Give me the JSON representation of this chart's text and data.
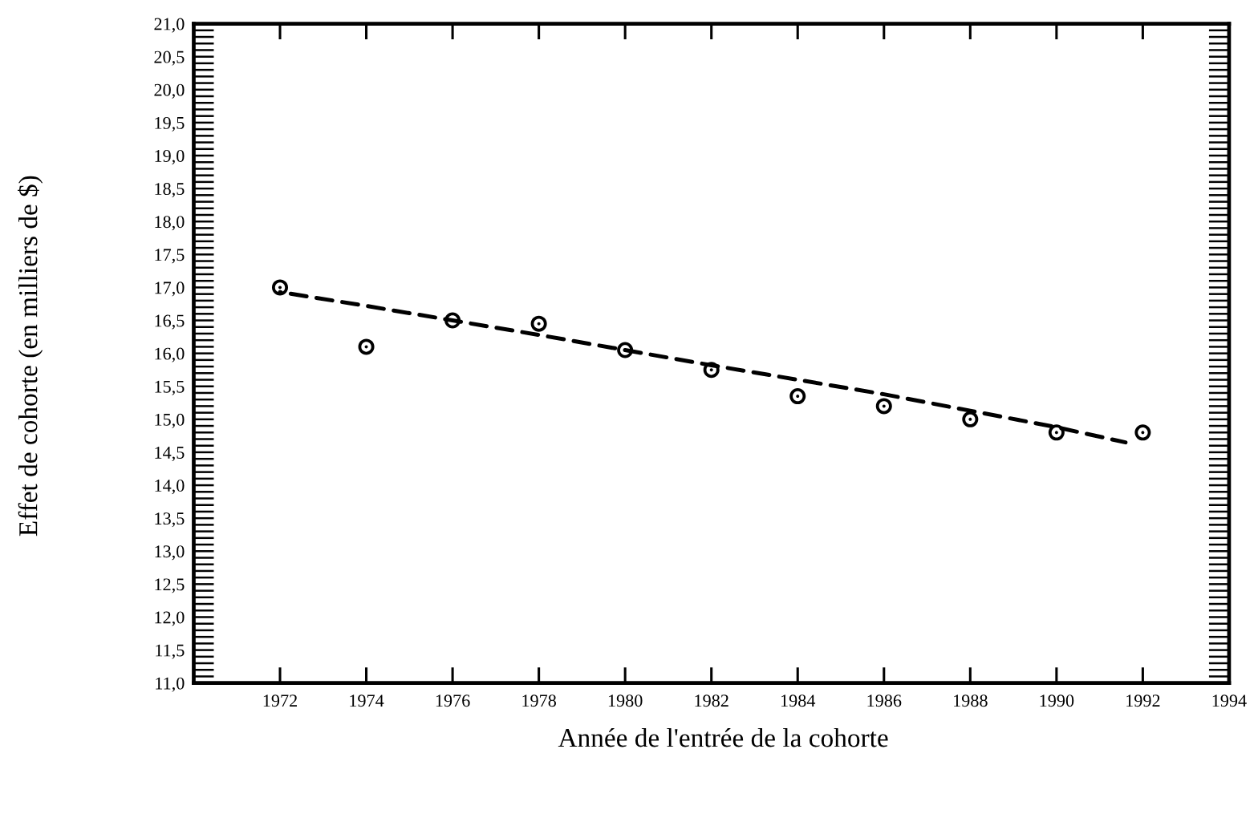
{
  "chart_data": {
    "type": "scatter",
    "xlabel": "Année de l'entrée de la cohorte",
    "ylabel": "Effet de cohorte (en milliers de $)",
    "xlim": [
      1970,
      1994
    ],
    "ylim": [
      11,
      21
    ],
    "xticks": [
      1972,
      1974,
      1976,
      1978,
      1980,
      1982,
      1984,
      1986,
      1988,
      1990,
      1992,
      1994
    ],
    "yticks": [
      {
        "value": 11,
        "label": "11,0"
      },
      {
        "value": 11.1,
        "label": null
      },
      {
        "value": 11.2,
        "label": null
      },
      {
        "value": 11.3,
        "label": null
      },
      {
        "value": 11.4,
        "label": null
      },
      {
        "value": 11.5,
        "label": "11,5"
      },
      {
        "value": 11.6,
        "label": null
      },
      {
        "value": 11.7,
        "label": null
      },
      {
        "value": 11.8,
        "label": null
      },
      {
        "value": 11.9,
        "label": null
      },
      {
        "value": 12,
        "label": "12,0"
      },
      {
        "value": 12.1,
        "label": null
      },
      {
        "value": 12.2,
        "label": null
      },
      {
        "value": 12.3,
        "label": null
      },
      {
        "value": 12.4,
        "label": null
      },
      {
        "value": 12.5,
        "label": "12,5"
      },
      {
        "value": 12.6,
        "label": null
      },
      {
        "value": 12.7,
        "label": null
      },
      {
        "value": 12.8,
        "label": null
      },
      {
        "value": 12.9,
        "label": null
      },
      {
        "value": 13,
        "label": "13,0"
      },
      {
        "value": 13.1,
        "label": null
      },
      {
        "value": 13.2,
        "label": null
      },
      {
        "value": 13.3,
        "label": null
      },
      {
        "value": 13.4,
        "label": null
      },
      {
        "value": 13.5,
        "label": "13,5"
      },
      {
        "value": 13.6,
        "label": null
      },
      {
        "value": 13.7,
        "label": null
      },
      {
        "value": 13.8,
        "label": null
      },
      {
        "value": 13.9,
        "label": null
      },
      {
        "value": 14,
        "label": "14,0"
      },
      {
        "value": 14.1,
        "label": null
      },
      {
        "value": 14.2,
        "label": null
      },
      {
        "value": 14.3,
        "label": null
      },
      {
        "value": 14.4,
        "label": null
      },
      {
        "value": 14.5,
        "label": "14,5"
      },
      {
        "value": 14.6,
        "label": null
      },
      {
        "value": 14.7,
        "label": null
      },
      {
        "value": 14.8,
        "label": null
      },
      {
        "value": 14.9,
        "label": null
      },
      {
        "value": 15,
        "label": "15,0"
      },
      {
        "value": 15.1,
        "label": null
      },
      {
        "value": 15.2,
        "label": null
      },
      {
        "value": 15.3,
        "label": null
      },
      {
        "value": 15.4,
        "label": null
      },
      {
        "value": 15.5,
        "label": "15,5"
      },
      {
        "value": 15.6,
        "label": null
      },
      {
        "value": 15.7,
        "label": null
      },
      {
        "value": 15.8,
        "label": null
      },
      {
        "value": 15.9,
        "label": null
      },
      {
        "value": 16,
        "label": "16,0"
      },
      {
        "value": 16.1,
        "label": null
      },
      {
        "value": 16.2,
        "label": null
      },
      {
        "value": 16.3,
        "label": null
      },
      {
        "value": 16.4,
        "label": null
      },
      {
        "value": 16.5,
        "label": "16,5"
      },
      {
        "value": 16.6,
        "label": null
      },
      {
        "value": 16.7,
        "label": null
      },
      {
        "value": 16.8,
        "label": null
      },
      {
        "value": 16.9,
        "label": null
      },
      {
        "value": 17,
        "label": "17,0"
      },
      {
        "value": 17.1,
        "label": null
      },
      {
        "value": 17.2,
        "label": null
      },
      {
        "value": 17.3,
        "label": null
      },
      {
        "value": 17.4,
        "label": null
      },
      {
        "value": 17.5,
        "label": "17,5"
      },
      {
        "value": 17.6,
        "label": null
      },
      {
        "value": 17.7,
        "label": null
      },
      {
        "value": 17.8,
        "label": null
      },
      {
        "value": 17.9,
        "label": null
      },
      {
        "value": 18,
        "label": "18,0"
      },
      {
        "value": 18.1,
        "label": null
      },
      {
        "value": 18.2,
        "label": null
      },
      {
        "value": 18.3,
        "label": null
      },
      {
        "value": 18.4,
        "label": null
      },
      {
        "value": 18.5,
        "label": "18,5"
      },
      {
        "value": 18.6,
        "label": null
      },
      {
        "value": 18.7,
        "label": null
      },
      {
        "value": 18.8,
        "label": null
      },
      {
        "value": 18.9,
        "label": null
      },
      {
        "value": 19,
        "label": "19,0"
      },
      {
        "value": 19.1,
        "label": null
      },
      {
        "value": 19.2,
        "label": null
      },
      {
        "value": 19.3,
        "label": null
      },
      {
        "value": 19.4,
        "label": null
      },
      {
        "value": 19.5,
        "label": "19,5"
      },
      {
        "value": 19.6,
        "label": null
      },
      {
        "value": 19.7,
        "label": null
      },
      {
        "value": 19.8,
        "label": null
      },
      {
        "value": 19.9,
        "label": null
      },
      {
        "value": 20,
        "label": "20,0"
      },
      {
        "value": 20.1,
        "label": null
      },
      {
        "value": 20.2,
        "label": null
      },
      {
        "value": 20.3,
        "label": null
      },
      {
        "value": 20.4,
        "label": null
      },
      {
        "value": 20.5,
        "label": "20,5"
      },
      {
        "value": 20.6,
        "label": null
      },
      {
        "value": 20.7,
        "label": null
      },
      {
        "value": 20.8,
        "label": null
      },
      {
        "value": 20.9,
        "label": null
      },
      {
        "value": 21,
        "label": "21,0"
      }
    ],
    "series": [
      {
        "type": "scatter",
        "color": "#000000",
        "marker": "circle",
        "x": [
          1972,
          1974,
          1976,
          1978,
          1980,
          1982,
          1984,
          1986,
          1988,
          1990,
          1992
        ],
        "values": [
          17.0,
          16.1,
          16.5,
          16.45,
          16.05,
          15.75,
          15.35,
          15.2,
          15.0,
          14.8,
          14.8
        ]
      },
      {
        "type": "line",
        "color": "#000000",
        "marker": "none",
        "line_style": "dashed",
        "x": [
          1972,
          1974,
          1976,
          1978,
          1980,
          1982,
          1984,
          1986,
          1988,
          1990,
          1991.6
        ],
        "values": [
          16.93,
          16.72,
          16.5,
          16.28,
          16.05,
          15.82,
          15.6,
          15.38,
          15.13,
          14.88,
          14.65
        ]
      }
    ]
  }
}
